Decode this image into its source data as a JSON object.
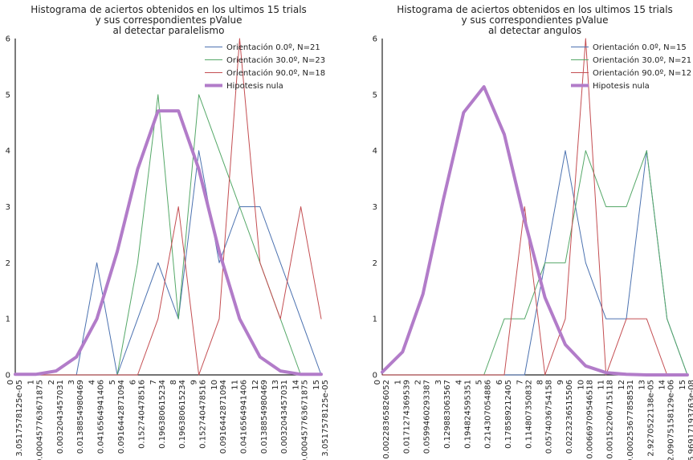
{
  "colors": {
    "blue": "#4c72b0",
    "green": "#55a868",
    "red": "#c44e52",
    "purple": "#b27cc9",
    "axis": "#222222"
  },
  "chart_data": [
    {
      "type": "line",
      "title": "Histograma de aciertos obtenidos en los ultimos 15 trials\ny sus correspondientes pValue\nal detectar paralelismo",
      "title_lines": [
        "Histograma de aciertos obtenidos en los ultimos 15 trials",
        "y sus correspondientes pValue",
        "al detectar paralelismo"
      ],
      "xlabel": "",
      "ylabel": "",
      "ylim": [
        0,
        6
      ],
      "xlim": [
        0,
        15
      ],
      "yticks": [
        0,
        1,
        2,
        3,
        4,
        5,
        6
      ],
      "grid": false,
      "legend_position": "top-right",
      "xtick_labels": [
        [
          "0",
          "3.0517578125e-05"
        ],
        [
          "1",
          "0.000457763671875"
        ],
        [
          "2",
          "0.0032043457031"
        ],
        [
          "3",
          "0.0138854980469"
        ],
        [
          "4",
          "0.0416564941406"
        ],
        [
          "5",
          "0.0916442871094"
        ],
        [
          "6",
          "0.152740478516"
        ],
        [
          "7",
          "0.196380615234"
        ],
        [
          "8",
          "0.196380615234"
        ],
        [
          "9",
          "0.152740478516"
        ],
        [
          "10",
          "0.0916442871094"
        ],
        [
          "11",
          "0.0416564941406"
        ],
        [
          "12",
          "0.0138854980469"
        ],
        [
          "13",
          "0.0032043457031"
        ],
        [
          "14",
          "0.000457763671875"
        ],
        [
          "15",
          "3.0517578125e-05"
        ]
      ],
      "x": [
        0,
        1,
        2,
        3,
        4,
        5,
        6,
        7,
        8,
        9,
        10,
        11,
        12,
        13,
        14,
        15
      ],
      "series": [
        {
          "name": "Orientación 0.0º, N=21",
          "color": "blue",
          "width": 1,
          "values": [
            0,
            0,
            0,
            0,
            2,
            0,
            1,
            2,
            1,
            4,
            2,
            3,
            3,
            2,
            1,
            0
          ]
        },
        {
          "name": "Orientación 30.0º, N=23",
          "color": "green",
          "width": 1,
          "values": [
            0,
            0,
            0,
            0,
            0,
            0,
            2,
            5,
            1,
            5,
            4,
            3,
            2,
            1,
            0,
            0
          ]
        },
        {
          "name": "Orientación 90.0º, N=18",
          "color": "red",
          "width": 1,
          "values": [
            0,
            0,
            0,
            0,
            0,
            0,
            0,
            1,
            3,
            0,
            1,
            6,
            2,
            1,
            3,
            1
          ]
        },
        {
          "name": "Hipotesis nula",
          "color": "purple",
          "width": 4,
          "values": [
            0.01,
            0.01,
            0.07,
            0.32,
            1.0,
            2.2,
            3.67,
            4.71,
            4.71,
            3.67,
            2.2,
            1.0,
            0.32,
            0.07,
            0.01,
            0.01
          ]
        }
      ]
    },
    {
      "type": "line",
      "title": "Histograma de aciertos obtenidos en los ultimos 15 trials\ny sus correspondientes pValue\nal detectar angulos",
      "title_lines": [
        "Histograma de aciertos obtenidos en los ultimos 15 trials",
        "y sus correspondientes pValue",
        "al detectar angulos"
      ],
      "xlabel": "",
      "ylabel": "",
      "ylim": [
        0,
        6
      ],
      "xlim": [
        0,
        15
      ],
      "yticks": [
        0,
        1,
        2,
        3,
        4,
        5,
        6
      ],
      "grid": false,
      "legend_position": "top-right",
      "xtick_labels": [
        [
          "0",
          "0.00228365826052"
        ],
        [
          "1",
          "0.0171274369539"
        ],
        [
          "2",
          "0.0599460293387"
        ],
        [
          "3",
          "0.129883063567"
        ],
        [
          "4",
          "0.194824595351"
        ],
        [
          "5",
          "0.214307054886"
        ],
        [
          "6",
          "0.178589212405"
        ],
        [
          "7",
          "0.114807350832"
        ],
        [
          "8",
          "0.0574036754158"
        ],
        [
          "9",
          "0.0223236515506"
        ],
        [
          "10",
          "0.00669709546518"
        ],
        [
          "11",
          "0.00152206715118"
        ],
        [
          "12",
          "0.000253677858531"
        ],
        [
          "13",
          "2.9270522138e-05"
        ],
        [
          "14",
          "2.09075158129e-06"
        ],
        [
          "15",
          "6.96917193763e-08"
        ]
      ],
      "x": [
        0,
        1,
        2,
        3,
        4,
        5,
        6,
        7,
        8,
        9,
        10,
        11,
        12,
        13,
        14,
        15
      ],
      "series": [
        {
          "name": "Orientación 0.0º, N=15",
          "color": "blue",
          "width": 1,
          "values": [
            0,
            0,
            0,
            0,
            0,
            0,
            0,
            0,
            2,
            4,
            2,
            1,
            1,
            4,
            1,
            0
          ]
        },
        {
          "name": "Orientación 30.0º, N=21",
          "color": "green",
          "width": 1,
          "values": [
            0,
            0,
            0,
            0,
            0,
            0,
            1,
            1,
            2,
            2,
            4,
            3,
            3,
            4,
            1,
            0
          ]
        },
        {
          "name": "Orientación 90.0º, N=12",
          "color": "red",
          "width": 1,
          "values": [
            0,
            0,
            0,
            0,
            0,
            0,
            0,
            3,
            0,
            1,
            6,
            0,
            1,
            1,
            0,
            0
          ]
        },
        {
          "name": "Hipotesis nula",
          "color": "purple",
          "width": 4,
          "values": [
            0.05,
            0.41,
            1.44,
            3.12,
            4.68,
            5.14,
            4.29,
            2.76,
            1.38,
            0.54,
            0.16,
            0.04,
            0.01,
            0.0,
            0.0,
            0.0
          ]
        }
      ]
    }
  ]
}
